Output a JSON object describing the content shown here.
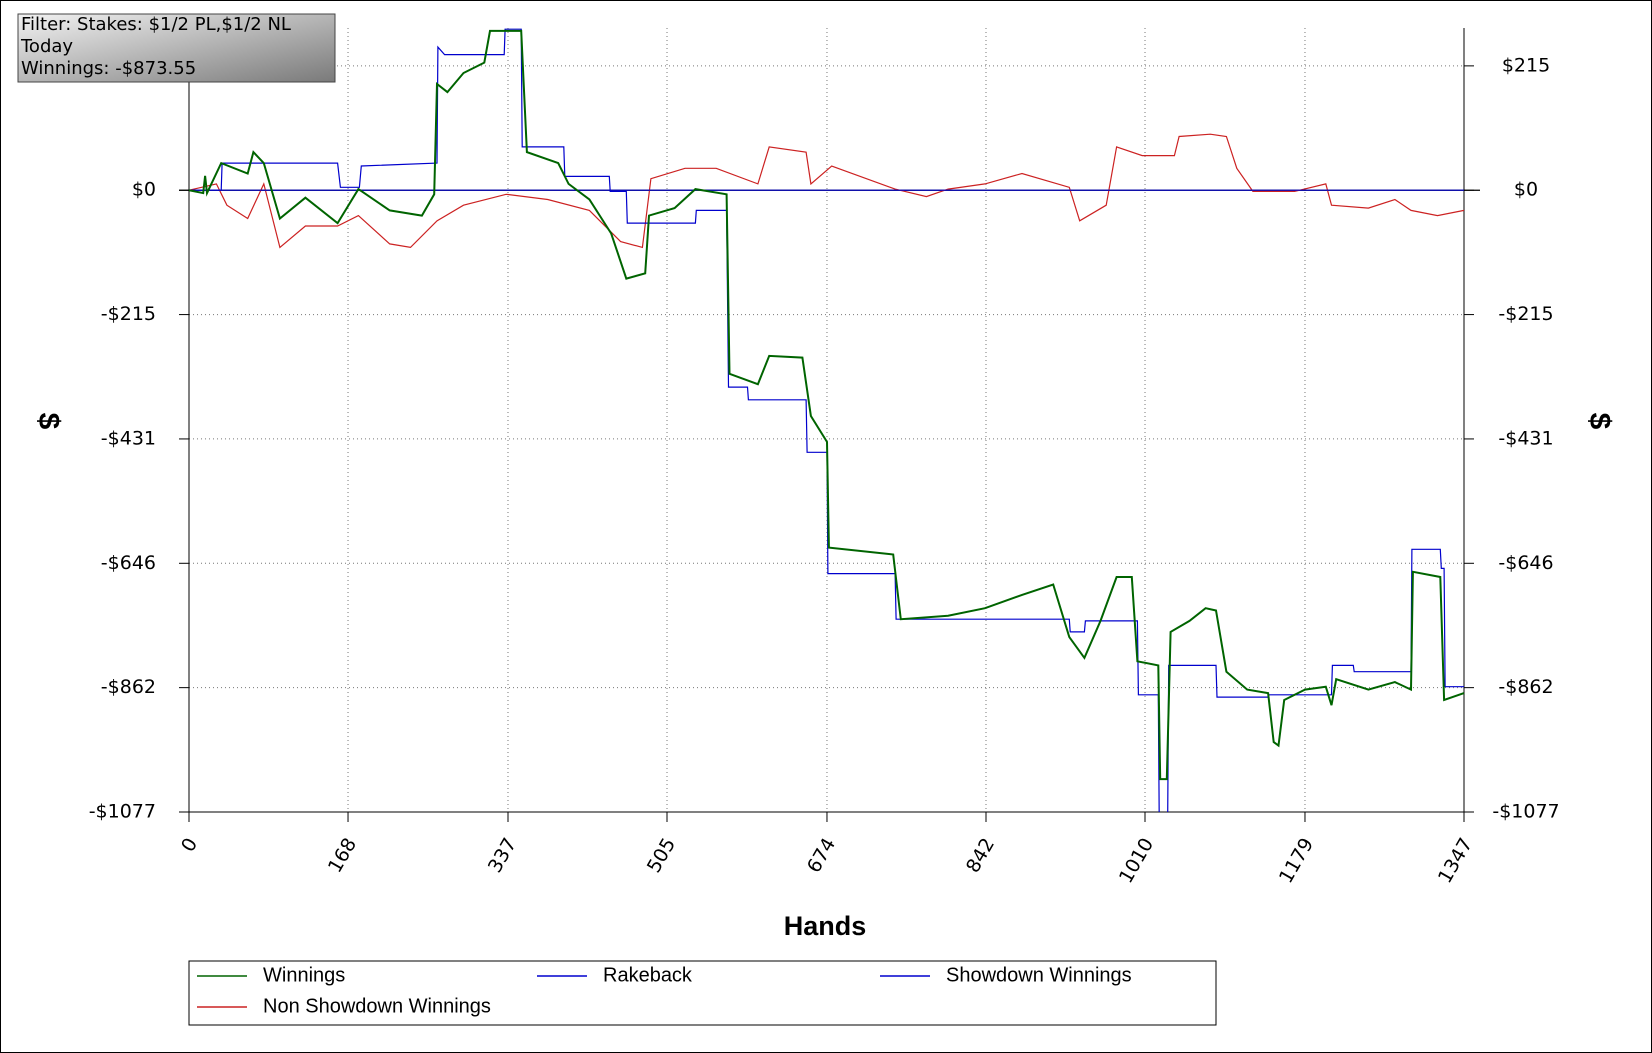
{
  "chart_data": {
    "type": "line",
    "annotations": [
      "Filter: Stakes: $1/2 PL,$1/2 NL",
      "Today",
      "Winnings: -$873.55"
    ],
    "x_label": "Hands",
    "y_label": "$",
    "xlim": [
      0,
      1347
    ],
    "ylim": [
      -1077,
      281
    ],
    "xticks": [
      0,
      168,
      337,
      505,
      674,
      842,
      1010,
      1179,
      1347
    ],
    "yticks": [
      {
        "value": 215.4,
        "label": "$215"
      },
      {
        "value": 0,
        "label": "$0"
      },
      {
        "value": -215.4,
        "label": "-$215"
      },
      {
        "value": -430.8,
        "label": "-$431"
      },
      {
        "value": -646.2,
        "label": "-$646"
      },
      {
        "value": -861.6,
        "label": "-$862"
      },
      {
        "value": -1077,
        "label": "-$1077"
      }
    ],
    "grid": true,
    "series": [
      {
        "name": "Winnings",
        "color": "#006400",
        "x": [
          0,
          15,
          17,
          19,
          34,
          62,
          68,
          79,
          96,
          123,
          157,
          179,
          212,
          246,
          259,
          262,
          273,
          290,
          312,
          318,
          351,
          357,
          390,
          401,
          423,
          446,
          462,
          482,
          486,
          513,
          535,
          568,
          571,
          601,
          613,
          648,
          657,
          674,
          676,
          744,
          752,
          802,
          841,
          880,
          913,
          930,
          946,
          963,
          980,
          996,
          1002,
          1024,
          1026,
          1033,
          1037,
          1057,
          1074,
          1085,
          1096,
          1118,
          1140,
          1146,
          1151,
          1157,
          1179,
          1201,
          1207,
          1212,
          1246,
          1274,
          1291,
          1293,
          1322,
          1326,
          1347
        ],
        "values": [
          0,
          -5,
          25,
          -5,
          47,
          29,
          66,
          47,
          -49,
          -13,
          -57,
          2,
          -35,
          -44,
          -7,
          184,
          170,
          203,
          221,
          276,
          276,
          66,
          47,
          11,
          -16,
          -75,
          -153,
          -144,
          -44,
          -31,
          2,
          -7,
          -318,
          -336,
          -287,
          -290,
          -391,
          -436,
          -619,
          -631,
          -743,
          -737,
          -724,
          -701,
          -683,
          -774,
          -810,
          -746,
          -670,
          -670,
          -816,
          -823,
          -1020,
          -1020,
          -765,
          -746,
          -724,
          -728,
          -834,
          -865,
          -871,
          -956,
          -962,
          -883,
          -865,
          -860,
          -892,
          -847,
          -865,
          -852,
          -865,
          -661,
          -670,
          -883,
          -871
        ]
      },
      {
        "name": "Rakeback",
        "color": "#0000cd",
        "x": [
          0,
          1347
        ],
        "values": [
          0,
          0
        ]
      },
      {
        "name": "Showdown Winnings",
        "color": "#0000cd",
        "x": [
          0,
          34,
          35,
          157,
          160,
          180,
          182,
          262,
          263,
          270,
          333,
          334,
          351,
          352,
          396,
          397,
          444,
          445,
          462,
          463,
          535,
          536,
          568,
          570,
          590,
          591,
          652,
          653,
          674,
          675,
          746,
          747,
          930,
          931,
          946,
          947,
          1002,
          1003,
          1024,
          1025,
          1034,
          1035,
          1085,
          1086,
          1140,
          1141,
          1207,
          1208,
          1230,
          1231,
          1291,
          1292,
          1322,
          1323,
          1326,
          1327,
          1347
        ],
        "values": [
          0,
          0,
          47,
          47,
          5,
          5,
          42,
          47,
          248,
          235,
          235,
          279,
          279,
          75,
          75,
          24,
          24,
          -2,
          -2,
          -57,
          -57,
          -35,
          -35,
          -341,
          -341,
          -363,
          -363,
          -454,
          -454,
          -664,
          -664,
          -743,
          -743,
          -765,
          -765,
          -746,
          -746,
          -874,
          -874,
          -1084,
          -1084,
          -823,
          -823,
          -878,
          -878,
          -874,
          -874,
          -823,
          -823,
          -834,
          -834,
          -622,
          -622,
          -655,
          -655,
          -860,
          -860
        ]
      },
      {
        "name": "Non Showdown Winnings",
        "color": "#cc2222",
        "x": [
          0,
          29,
          40,
          62,
          79,
          96,
          123,
          157,
          179,
          212,
          234,
          262,
          290,
          335,
          379,
          423,
          456,
          479,
          488,
          524,
          557,
          601,
          613,
          652,
          657,
          679,
          746,
          779,
          802,
          841,
          880,
          930,
          941,
          969,
          980,
          1007,
          1041,
          1046,
          1079,
          1096,
          1107,
          1124,
          1168,
          1201,
          1207,
          1246,
          1274,
          1291,
          1319,
          1347
        ],
        "values": [
          0,
          11,
          -26,
          -49,
          11,
          -99,
          -62,
          -62,
          -44,
          -93,
          -99,
          -53,
          -26,
          -7,
          -16,
          -35,
          -89,
          -99,
          20,
          38,
          38,
          11,
          75,
          66,
          11,
          42,
          2,
          -11,
          2,
          11,
          29,
          5,
          -53,
          -26,
          75,
          60,
          60,
          93,
          97,
          93,
          38,
          -2,
          -2,
          11,
          -26,
          -31,
          -16,
          -35,
          -44,
          -35
        ]
      }
    ]
  }
}
